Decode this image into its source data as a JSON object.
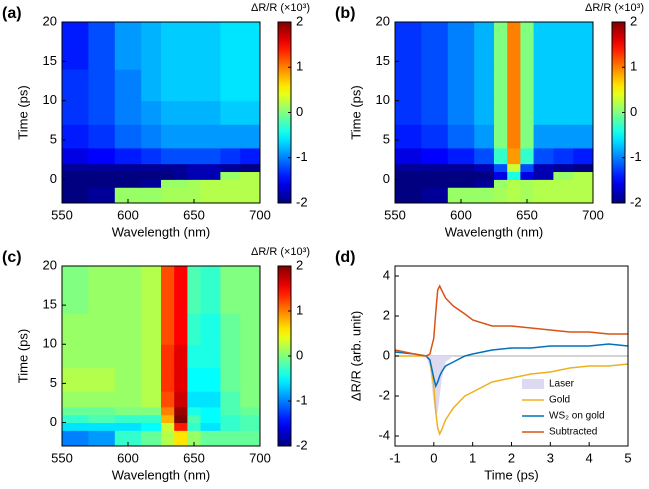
{
  "chart_data": [
    {
      "type": "heatmap",
      "panel_label": "(a)",
      "xlabel": "Wavelength (nm)",
      "ylabel": "Time (ps)",
      "xlim": [
        550,
        700
      ],
      "ylim": [
        -3,
        20
      ],
      "xticks": [
        550,
        600,
        650,
        700
      ],
      "yticks": [
        0,
        5,
        10,
        15,
        20
      ],
      "x_edges": [
        550,
        570,
        590,
        610,
        625,
        635,
        645,
        655,
        670,
        685,
        700
      ],
      "y_edges": [
        -3,
        -1,
        0,
        1,
        2,
        4,
        7,
        10,
        14,
        17,
        20
      ],
      "z": [
        [
          -2,
          -1.9,
          0.1,
          0.1,
          0.15,
          0.15,
          0.15,
          0.2,
          0.2,
          0.2
        ],
        [
          -2,
          -2,
          -2,
          -1.9,
          0.1,
          0.1,
          0.15,
          0.2,
          0.2,
          0.2
        ],
        [
          -2,
          -2,
          -2,
          -2,
          -2,
          -1.9,
          -1.8,
          -1.8,
          0.1,
          0.2
        ],
        [
          -1.9,
          -1.9,
          -1.9,
          -1.9,
          -1.9,
          -1.9,
          -1.8,
          -1.8,
          -1.9,
          -2
        ],
        [
          -1.6,
          -1.5,
          -1.4,
          -1.3,
          -1.2,
          -1.2,
          -1.2,
          -1.2,
          -1.3,
          -1.4
        ],
        [
          -1.4,
          -1.3,
          -1.1,
          -1.0,
          -0.9,
          -0.9,
          -0.9,
          -0.9,
          -0.9,
          -0.9
        ],
        [
          -1.3,
          -1.2,
          -1.0,
          -0.9,
          -0.8,
          -0.8,
          -0.8,
          -0.8,
          -0.7,
          -0.7
        ],
        [
          -1.3,
          -1.2,
          -1.0,
          -0.8,
          -0.7,
          -0.7,
          -0.7,
          -0.7,
          -0.6,
          -0.6
        ],
        [
          -1.4,
          -1.2,
          -0.9,
          -0.8,
          -0.7,
          -0.7,
          -0.7,
          -0.7,
          -0.6,
          -0.6
        ],
        [
          -1.4,
          -1.2,
          -0.9,
          -0.8,
          -0.7,
          -0.7,
          -0.7,
          -0.7,
          -0.6,
          -0.6
        ]
      ],
      "colorbar": {
        "label": "ΔR/R (×10³)",
        "lim": [
          -2,
          2
        ],
        "ticks": [
          -2,
          -1,
          0,
          1,
          2
        ]
      }
    },
    {
      "type": "heatmap",
      "panel_label": "(b)",
      "xlabel": "Wavelength (nm)",
      "ylabel": "Time (ps)",
      "xlim": [
        550,
        700
      ],
      "ylim": [
        -3,
        20
      ],
      "xticks": [
        550,
        600,
        650,
        700
      ],
      "yticks": [
        0,
        5,
        10,
        15,
        20
      ],
      "x_edges": [
        550,
        570,
        590,
        610,
        625,
        635,
        645,
        655,
        670,
        685,
        700
      ],
      "y_edges": [
        -3,
        -1,
        0,
        1,
        2,
        4,
        7,
        10,
        14,
        17,
        20
      ],
      "z": [
        [
          -2,
          -1.9,
          0.1,
          0.1,
          0.15,
          0.2,
          0.15,
          0.2,
          0.2,
          0.2
        ],
        [
          -2,
          -2,
          -2,
          -1.9,
          0.1,
          0.2,
          0.15,
          0.2,
          0.2,
          0.2
        ],
        [
          -2,
          -2,
          -2,
          -2,
          -1.6,
          -0.4,
          -1.6,
          -1.8,
          0.1,
          0.2
        ],
        [
          -1.9,
          -1.9,
          -1.9,
          -1.8,
          -1.2,
          0.3,
          -1.2,
          -1.8,
          -1.9,
          -2
        ],
        [
          -1.6,
          -1.5,
          -1.4,
          -1.2,
          -0.3,
          0.9,
          -0.3,
          -1.2,
          -1.3,
          -1.4
        ],
        [
          -1.4,
          -1.3,
          -1.1,
          -0.9,
          0,
          1.0,
          0,
          -0.9,
          -0.9,
          -0.9
        ],
        [
          -1.3,
          -1.2,
          -1.0,
          -0.8,
          0,
          1.0,
          0,
          -0.7,
          -0.7,
          -0.7
        ],
        [
          -1.3,
          -1.2,
          -1.0,
          -0.8,
          0,
          1.0,
          0,
          -0.7,
          -0.7,
          -0.7
        ],
        [
          -1.3,
          -1.2,
          -1.0,
          -0.8,
          0,
          1.0,
          0,
          -0.7,
          -0.7,
          -0.7
        ],
        [
          -1.3,
          -1.2,
          -1.0,
          -0.8,
          0,
          1.0,
          0,
          -0.7,
          -0.7,
          -0.7
        ]
      ],
      "colorbar": {
        "label": "ΔR/R (×10³)",
        "lim": [
          -2,
          2
        ],
        "ticks": [
          -2,
          -1,
          0,
          1,
          2
        ]
      }
    },
    {
      "type": "heatmap",
      "panel_label": "(c)",
      "xlabel": "Wavelength (nm)",
      "ylabel": "Time (ps)",
      "xlim": [
        550,
        700
      ],
      "ylim": [
        -3,
        20
      ],
      "xticks": [
        550,
        600,
        650,
        700
      ],
      "yticks": [
        0,
        5,
        10,
        15,
        20
      ],
      "x_edges": [
        550,
        570,
        590,
        610,
        625,
        635,
        645,
        655,
        670,
        685,
        700
      ],
      "y_edges": [
        -3,
        -1,
        0,
        1,
        2,
        4,
        7,
        10,
        14,
        17,
        20
      ],
      "z": [
        [
          -1.0,
          -0.9,
          -0.3,
          -0.1,
          0.2,
          0.6,
          0.1,
          -0.1,
          -0.1,
          -0.1
        ],
        [
          -0.6,
          -0.6,
          -0.6,
          -0.5,
          0.3,
          1.4,
          -0.3,
          -0.6,
          -0.3,
          -0.2
        ],
        [
          -0.3,
          -0.2,
          -0.3,
          -0.3,
          0.8,
          2.0,
          -0.2,
          -0.5,
          -0.3,
          -0.2
        ],
        [
          -0.1,
          -0.1,
          0,
          0,
          1.0,
          1.9,
          -0.4,
          -0.5,
          -0.2,
          -0.1
        ],
        [
          0.1,
          0.1,
          0.1,
          0.2,
          1.2,
          1.7,
          -0.6,
          -0.6,
          -0.2,
          0
        ],
        [
          0.2,
          0.2,
          0.1,
          0.2,
          1.3,
          1.6,
          -0.5,
          -0.5,
          -0.1,
          0
        ],
        [
          0.1,
          0.1,
          0.1,
          0.2,
          1.3,
          1.6,
          -0.4,
          -0.4,
          -0.1,
          0
        ],
        [
          0.1,
          0.1,
          0.1,
          0.2,
          1.2,
          1.5,
          -0.3,
          -0.4,
          -0.1,
          0
        ],
        [
          0,
          0.1,
          0.1,
          0.2,
          1.2,
          1.5,
          -0.2,
          -0.3,
          0,
          0
        ],
        [
          0,
          0.1,
          0.1,
          0.2,
          1.2,
          1.5,
          -0.2,
          -0.3,
          0,
          0
        ]
      ],
      "colorbar": {
        "label": "ΔR/R (×10³)",
        "lim": [
          -2,
          2
        ],
        "ticks": [
          -2,
          -1,
          0,
          1,
          2
        ]
      }
    },
    {
      "type": "line",
      "panel_label": "(d)",
      "xlabel": "Time (ps)",
      "ylabel": "ΔR/R (arb. unit)",
      "xlim": [
        -1,
        5
      ],
      "ylim": [
        -4.5,
        4.5
      ],
      "xticks": [
        -1,
        0,
        1,
        2,
        3,
        4,
        5
      ],
      "yticks": [
        -4,
        -2,
        0,
        2,
        4
      ],
      "x": [
        -1,
        -0.5,
        -0.2,
        -0.1,
        0,
        0.05,
        0.1,
        0.15,
        0.2,
        0.3,
        0.5,
        0.8,
        1,
        1.5,
        2,
        2.5,
        3,
        3.5,
        4,
        4.5,
        5
      ],
      "series": [
        {
          "name": "Laser",
          "color": "#dcdaf0",
          "fill": true,
          "values": [
            0,
            0,
            0,
            -0.6,
            -2.4,
            -3,
            -2.8,
            -2,
            -1.2,
            -0.3,
            0,
            0,
            0,
            0,
            0,
            0,
            0,
            0,
            0,
            0,
            0
          ]
        },
        {
          "name": "Gold",
          "color": "#edb120",
          "values": [
            0,
            0,
            0,
            -0.2,
            -1.5,
            -2.8,
            -3.6,
            -3.9,
            -3.7,
            -3.2,
            -2.6,
            -2,
            -1.8,
            -1.3,
            -1.1,
            -0.9,
            -0.8,
            -0.6,
            -0.5,
            -0.5,
            -0.4
          ]
        },
        {
          "name": "WS₂ on gold",
          "color": "#0072bd",
          "values": [
            0.2,
            0.1,
            0,
            -0.2,
            -1.1,
            -1.5,
            -1.3,
            -1.0,
            -0.8,
            -0.5,
            -0.3,
            0,
            0.1,
            0.3,
            0.4,
            0.4,
            0.5,
            0.5,
            0.5,
            0.6,
            0.5
          ]
        },
        {
          "name": "Subtracted",
          "color": "#d95319",
          "values": [
            0.3,
            0.1,
            0,
            0.1,
            0.9,
            2.2,
            3.3,
            3.5,
            3.3,
            2.9,
            2.5,
            2.1,
            1.8,
            1.5,
            1.5,
            1.4,
            1.3,
            1.2,
            1.2,
            1.1,
            1.1
          ]
        }
      ]
    }
  ]
}
